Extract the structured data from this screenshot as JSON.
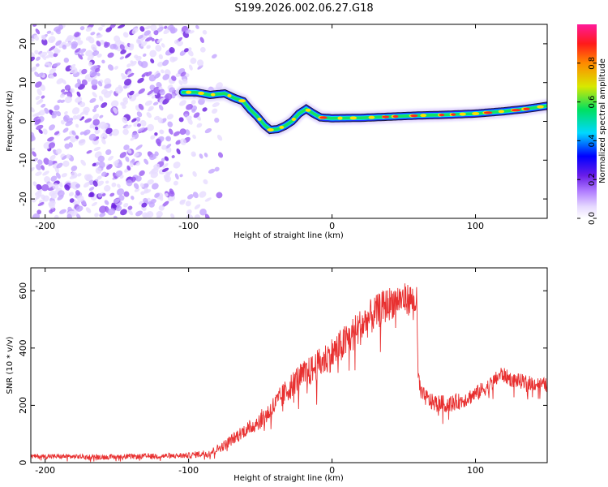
{
  "title": "S199.2026.002.06.27.G18",
  "colors": {
    "snr_line": "#e83030",
    "noise_purple": "#8a3fe0",
    "ridge_outline": "#1a1a2e"
  },
  "chart_data": [
    {
      "type": "heatmap",
      "name": "spectrogram",
      "xlabel": "Height of straight line (km)",
      "ylabel": "Frequency (Hz)",
      "xlim": [
        -210,
        150
      ],
      "ylim": [
        -25,
        25
      ],
      "xticks": [
        -200,
        -100,
        0,
        100
      ],
      "xtick_labels": [
        "-200",
        "-100",
        "0",
        "100"
      ],
      "yticks": [
        -20,
        -10,
        0,
        10,
        20
      ],
      "ytick_labels": [
        "-20",
        "-10",
        "0",
        "10",
        "20"
      ],
      "ridge": {
        "x": [
          -104,
          -95,
          -85,
          -75,
          -68,
          -62,
          -57,
          -52,
          -47,
          -43,
          -38,
          -33,
          -28,
          -23,
          -18,
          -13,
          -8,
          0,
          20,
          40,
          60,
          80,
          100,
          120,
          135,
          150
        ],
        "y": [
          7.5,
          7.5,
          6.8,
          7.2,
          6.0,
          5.2,
          3.0,
          1.2,
          -1.0,
          -2.2,
          -2.0,
          -1.2,
          0.0,
          2.0,
          3.2,
          2.0,
          1.0,
          0.8,
          0.9,
          1.2,
          1.5,
          1.7,
          2.0,
          2.6,
          3.2,
          4.0
        ]
      },
      "colorbar": {
        "label": "Normalized spectral amplitude",
        "range": [
          0,
          1
        ],
        "ticks": [
          0.0,
          0.2,
          0.4,
          0.6,
          0.8
        ],
        "tick_labels": [
          "0.0",
          "0.2",
          "0.4",
          "0.6",
          "0.8"
        ]
      }
    },
    {
      "type": "line",
      "name": "snr",
      "xlabel": "Height of straight line (km)",
      "ylabel": "SNR (10 * v/v)",
      "xlim": [
        -210,
        150
      ],
      "ylim": [
        0,
        680
      ],
      "xticks": [
        -200,
        -100,
        0,
        100
      ],
      "xtick_labels": [
        "-200",
        "-100",
        "0",
        "100"
      ],
      "yticks": [
        0,
        200,
        400,
        600
      ],
      "ytick_labels": [
        "0",
        "200",
        "400",
        "600"
      ],
      "envelope": {
        "x": [
          -210,
          -150,
          -100,
          -85,
          -75,
          -65,
          -55,
          -45,
          -35,
          -25,
          -15,
          -5,
          5,
          15,
          25,
          35,
          45,
          55,
          59,
          60,
          62,
          70,
          80,
          90,
          100,
          110,
          118,
          125,
          135,
          150
        ],
        "y": [
          22,
          20,
          25,
          35,
          60,
          100,
          130,
          170,
          230,
          290,
          320,
          360,
          400,
          450,
          500,
          540,
          570,
          570,
          560,
          300,
          240,
          210,
          205,
          215,
          240,
          270,
          310,
          290,
          280,
          270
        ]
      },
      "noise_amplitude": {
        "x": [
          -210,
          -100,
          -80,
          -60,
          -40,
          -20,
          0,
          20,
          40,
          59,
          62,
          100,
          150
        ],
        "y": [
          8,
          10,
          15,
          25,
          40,
          50,
          60,
          65,
          60,
          55,
          30,
          28,
          25
        ]
      }
    }
  ]
}
